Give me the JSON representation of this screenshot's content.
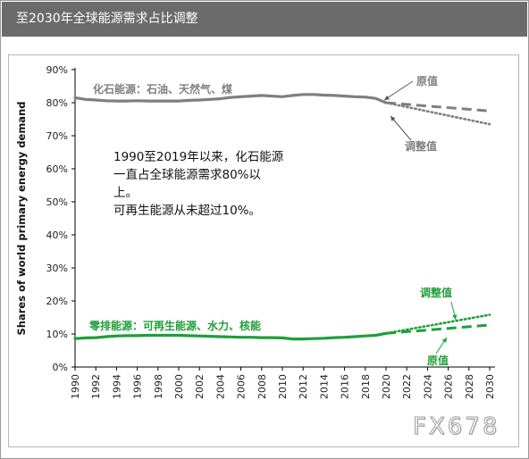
{
  "header": {
    "title": "至2030年全球能源需求占比调整"
  },
  "watermark": "FX678",
  "chart_data": {
    "type": "line",
    "title": "",
    "ylabel": "Shares of world primary energy demand",
    "xlabel": "",
    "x_ticks": [
      1990,
      1992,
      1994,
      1996,
      1998,
      2000,
      2002,
      2004,
      2006,
      2008,
      2010,
      2012,
      2014,
      2016,
      2018,
      2020,
      2022,
      2024,
      2026,
      2028,
      2030
    ],
    "xlim": [
      1990,
      2030
    ],
    "y_ticks": [
      "0%",
      "10%",
      "20%",
      "30%",
      "40%",
      "50%",
      "60%",
      "70%",
      "80%",
      "90%"
    ],
    "ylim": [
      0,
      90
    ],
    "grid": false,
    "annotation": {
      "line1": "1990至2019年以来，化石能源",
      "line2": "一直占全球能源需求80%以",
      "line3": "上。",
      "line4": "可再生能源从未超过10%。"
    },
    "labels": {
      "fossil": "化石能源：石油、天然气、煤",
      "fossil_original": "原值",
      "fossil_adjusted": "调整值",
      "zero": "零排能源：可再生能源、水力、核能",
      "zero_adjusted": "调整值",
      "zero_original": "原值"
    },
    "series": [
      {
        "key": "fossil_historical",
        "color": "#7f7f7f",
        "style": "solid",
        "x": [
          1990,
          1991,
          1992,
          1993,
          1994,
          1995,
          1996,
          1997,
          1998,
          1999,
          2000,
          2001,
          2002,
          2003,
          2004,
          2005,
          2006,
          2007,
          2008,
          2009,
          2010,
          2011,
          2012,
          2013,
          2014,
          2015,
          2016,
          2017,
          2018,
          2019,
          2020
        ],
        "y": [
          81.5,
          81,
          80.8,
          80.6,
          80.5,
          80.5,
          80.6,
          80.5,
          80.5,
          80.5,
          80.5,
          80.7,
          80.8,
          81,
          81.2,
          81.6,
          81.8,
          82,
          82.2,
          82,
          81.8,
          82.2,
          82.5,
          82.5,
          82.3,
          82.2,
          82,
          81.8,
          81.7,
          81.3,
          80
        ]
      },
      {
        "key": "fossil_original",
        "color": "#7f7f7f",
        "style": "dashed",
        "x": [
          2020,
          2030
        ],
        "y": [
          80,
          77.5
        ]
      },
      {
        "key": "fossil_adjusted",
        "color": "#7f7f7f",
        "style": "dotted",
        "x": [
          2020,
          2030
        ],
        "y": [
          80,
          73.5
        ]
      },
      {
        "key": "zero_historical",
        "color": "#1f9e3a",
        "style": "solid",
        "x": [
          1990,
          1991,
          1992,
          1993,
          1994,
          1995,
          1996,
          1997,
          1998,
          1999,
          2000,
          2001,
          2002,
          2003,
          2004,
          2005,
          2006,
          2007,
          2008,
          2009,
          2010,
          2011,
          2012,
          2013,
          2014,
          2015,
          2016,
          2017,
          2018,
          2019,
          2020
        ],
        "y": [
          8.6,
          8.8,
          8.9,
          9.2,
          9.4,
          9.5,
          9.5,
          9.6,
          9.6,
          9.6,
          9.6,
          9.5,
          9.4,
          9.3,
          9.2,
          9.1,
          9.0,
          9.0,
          8.9,
          8.9,
          8.8,
          8.5,
          8.5,
          8.6,
          8.7,
          8.9,
          9.0,
          9.2,
          9.4,
          9.6,
          10.2
        ]
      },
      {
        "key": "zero_original",
        "color": "#1f9e3a",
        "style": "dashed",
        "x": [
          2020,
          2030
        ],
        "y": [
          10.2,
          12.7
        ]
      },
      {
        "key": "zero_adjusted",
        "color": "#1f9e3a",
        "style": "dotted",
        "x": [
          2020,
          2030
        ],
        "y": [
          10.2,
          15.8
        ]
      }
    ]
  }
}
